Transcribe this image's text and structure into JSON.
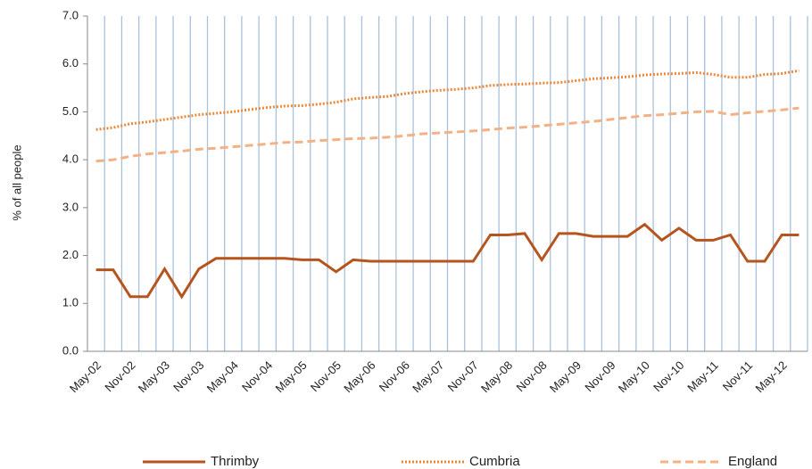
{
  "chart_data": {
    "type": "line",
    "y_label": "% of all people",
    "categories": [
      "May-02",
      null,
      "Nov-02",
      null,
      "May-03",
      null,
      "Nov-03",
      null,
      "May-04",
      null,
      "Nov-04",
      null,
      "May-05",
      null,
      "Nov-05",
      null,
      "May-06",
      null,
      "Nov-06",
      null,
      "May-07",
      null,
      "Nov-07",
      null,
      "May-08",
      null,
      "Nov-08",
      null,
      "May-09",
      null,
      "Nov-09",
      null,
      "May-10",
      null,
      "Nov-10",
      null,
      "May-11",
      null,
      "Nov-11",
      null,
      "May-12",
      null
    ],
    "series": [
      {
        "name": "Thrimby",
        "color": "#b5541c",
        "dash": "solid",
        "values": [
          1.7,
          1.7,
          1.14,
          1.14,
          1.72,
          1.14,
          1.72,
          1.94,
          1.94,
          1.94,
          1.94,
          1.94,
          1.91,
          1.91,
          1.66,
          1.91,
          1.88,
          1.88,
          1.88,
          1.88,
          1.88,
          1.88,
          1.88,
          2.43,
          2.43,
          2.46,
          1.91,
          2.46,
          2.46,
          2.4,
          2.4,
          2.4,
          2.65,
          2.32,
          2.57,
          2.32,
          2.32,
          2.43,
          1.88,
          1.88,
          2.43,
          2.43
        ]
      },
      {
        "name": "Cumbria",
        "color": "#e8893a",
        "dash": "dotted",
        "values": [
          4.63,
          4.67,
          4.75,
          4.79,
          4.84,
          4.89,
          4.94,
          4.97,
          5.0,
          5.05,
          5.09,
          5.12,
          5.13,
          5.16,
          5.2,
          5.27,
          5.3,
          5.32,
          5.38,
          5.42,
          5.45,
          5.47,
          5.5,
          5.55,
          5.57,
          5.58,
          5.6,
          5.61,
          5.65,
          5.69,
          5.71,
          5.73,
          5.77,
          5.79,
          5.8,
          5.82,
          5.78,
          5.72,
          5.72,
          5.78,
          5.8,
          5.86
        ]
      },
      {
        "name": "England",
        "color": "#f4b183",
        "dash": "dashed",
        "values": [
          3.97,
          4.0,
          4.07,
          4.12,
          4.15,
          4.18,
          4.22,
          4.24,
          4.27,
          4.3,
          4.33,
          4.36,
          4.37,
          4.4,
          4.42,
          4.44,
          4.45,
          4.47,
          4.5,
          4.54,
          4.56,
          4.58,
          4.6,
          4.63,
          4.66,
          4.68,
          4.71,
          4.74,
          4.77,
          4.8,
          4.84,
          4.88,
          4.92,
          4.94,
          4.97,
          5.0,
          5.01,
          4.94,
          4.98,
          5.01,
          5.04,
          5.08
        ]
      }
    ],
    "ylim": [
      0,
      7
    ],
    "yticks": [
      {
        "value": 0,
        "label": "0.0"
      },
      {
        "value": 1,
        "label": "1.0"
      },
      {
        "value": 2,
        "label": "2.0"
      },
      {
        "value": 3,
        "label": "3.0"
      },
      {
        "value": 4,
        "label": "4.0"
      },
      {
        "value": 5,
        "label": "5.0"
      },
      {
        "value": 6,
        "label": "6.0"
      },
      {
        "value": 7,
        "label": "7.0"
      }
    ],
    "legend": "bottom"
  }
}
